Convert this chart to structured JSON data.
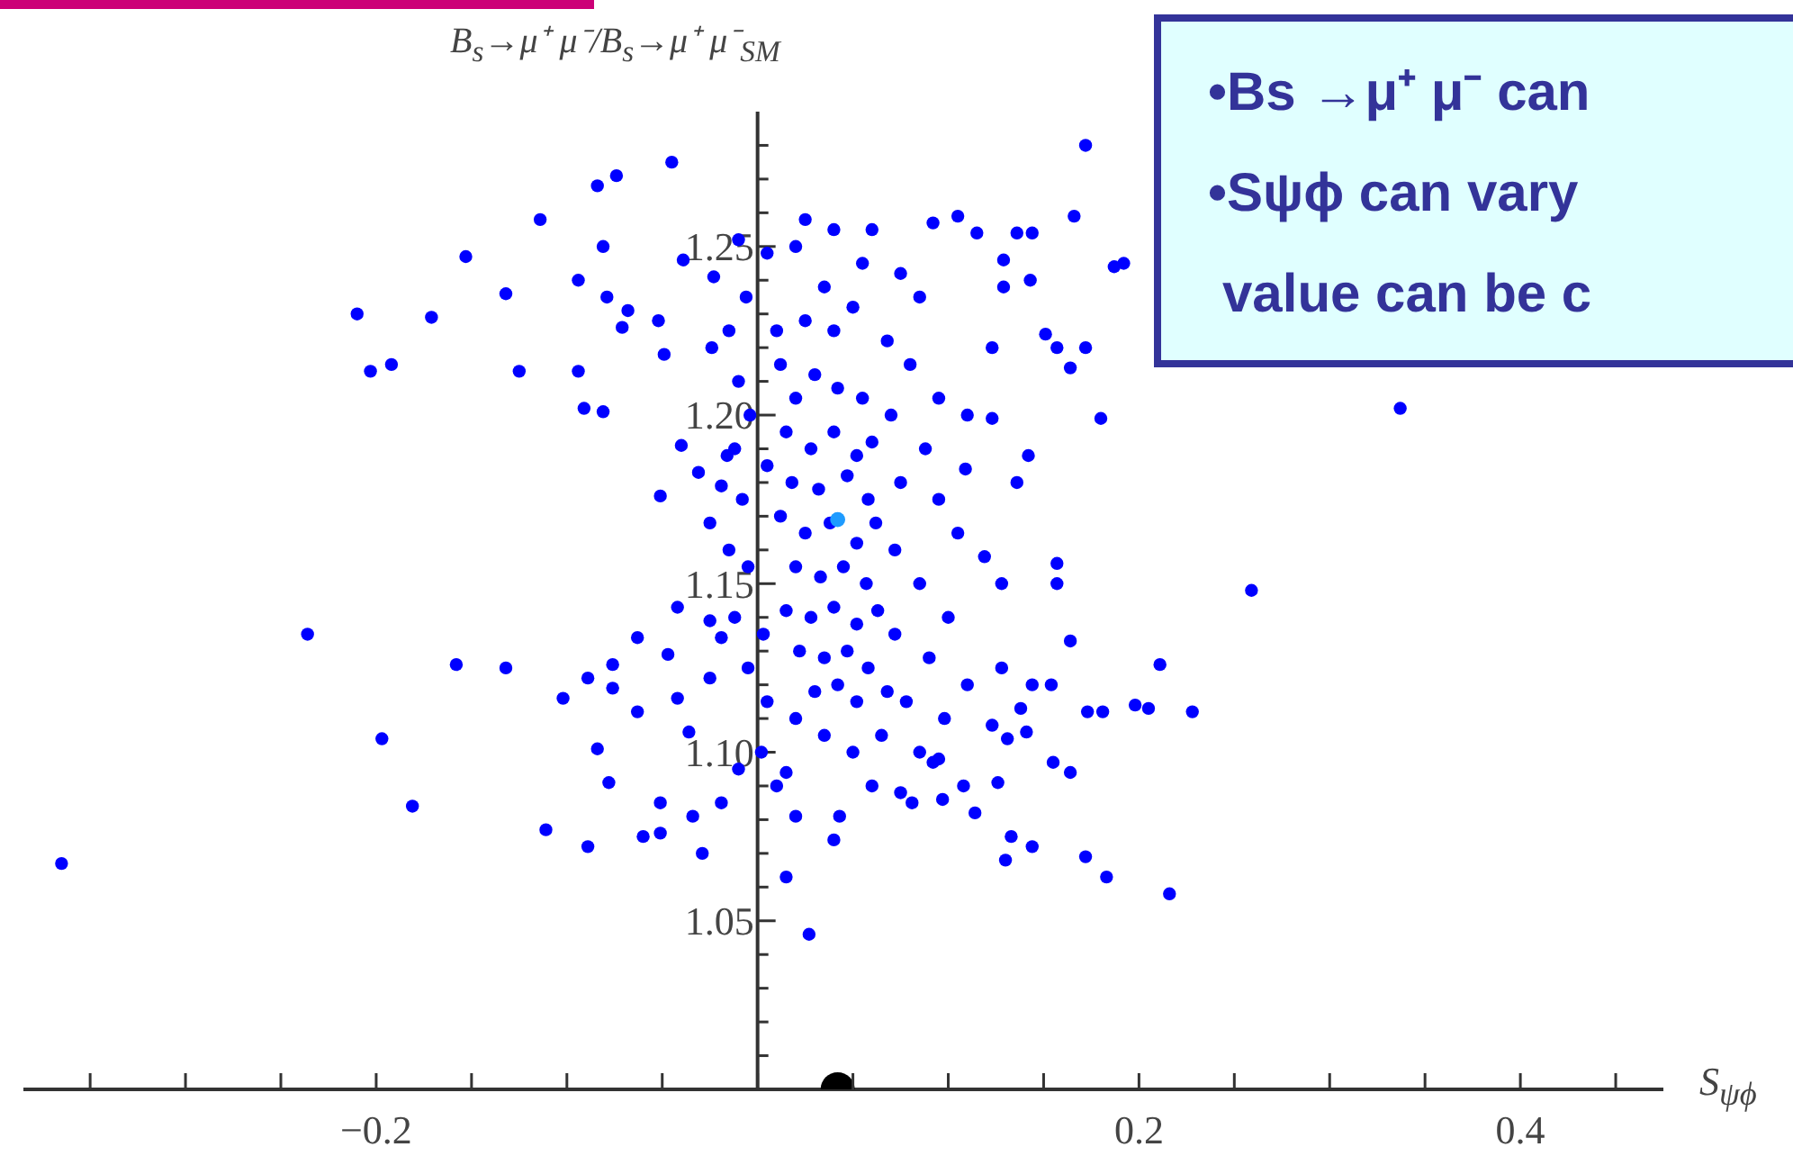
{
  "chart_data": {
    "type": "scatter",
    "ylabel": "B$_{s}$→μ⁺ μ⁻/B$_{s}$→μ⁺ μ⁻$_{SM}$",
    "xlabel": "S$_{ψϕ}$",
    "annotations": [
      "•Bs →μ⁺ μ⁻ can",
      "•Sψϕ can vary",
      "value can be c"
    ],
    "xlim": [
      -0.385,
      0.475
    ],
    "ylim": [
      1.0,
      1.29
    ],
    "xticks": [
      {
        "value": -0.35,
        "label": null
      },
      {
        "value": -0.3,
        "label": null
      },
      {
        "value": -0.25,
        "label": null
      },
      {
        "value": -0.2,
        "label": "−0.2"
      },
      {
        "value": -0.15,
        "label": null
      },
      {
        "value": -0.1,
        "label": null
      },
      {
        "value": -0.05,
        "label": null
      },
      {
        "value": 0,
        "label": null
      },
      {
        "value": 0.05,
        "label": null
      },
      {
        "value": 0.1,
        "label": null
      },
      {
        "value": 0.15,
        "label": null
      },
      {
        "value": 0.2,
        "label": "0.2"
      },
      {
        "value": 0.25,
        "label": null
      },
      {
        "value": 0.3,
        "label": null
      },
      {
        "value": 0.35,
        "label": null
      },
      {
        "value": 0.4,
        "label": "0.4"
      },
      {
        "value": 0.45,
        "label": null
      }
    ],
    "yticks": [
      {
        "value": 1.01,
        "label": null
      },
      {
        "value": 1.02,
        "label": null
      },
      {
        "value": 1.03,
        "label": null
      },
      {
        "value": 1.04,
        "label": null
      },
      1.05,
      {
        "value": 1.06,
        "label": null
      },
      {
        "value": 1.07,
        "label": null
      },
      {
        "value": 1.08,
        "label": null
      },
      {
        "value": 1.09,
        "label": null
      },
      {
        "value": 1.1,
        "label": "1.10"
      },
      {
        "value": 1.11,
        "label": null
      },
      {
        "value": 1.12,
        "label": null
      },
      {
        "value": 1.13,
        "label": null
      },
      {
        "value": 1.14,
        "label": null
      },
      1.15,
      {
        "value": 1.16,
        "label": null
      },
      {
        "value": 1.17,
        "label": null
      },
      {
        "value": 1.18,
        "label": null
      },
      {
        "value": 1.19,
        "label": null
      },
      {
        "value": 1.2,
        "label": "1.20"
      },
      {
        "value": 1.21,
        "label": null
      },
      {
        "value": 1.22,
        "label": null
      },
      {
        "value": 1.23,
        "label": null
      },
      {
        "value": 1.24,
        "label": null
      },
      1.25,
      {
        "value": 1.26,
        "label": null
      },
      {
        "value": 1.27,
        "label": null
      },
      {
        "value": 1.28,
        "label": null
      }
    ],
    "marker": "circle",
    "series": [
      {
        "color": "#0000ff",
        "x": [
          -0.365,
          -0.236,
          -0.21,
          -0.203,
          -0.192,
          -0.197,
          -0.181,
          -0.171,
          -0.158,
          -0.153,
          -0.132,
          -0.132,
          -0.125,
          -0.114,
          -0.111,
          -0.102,
          -0.094,
          -0.094,
          -0.091,
          -0.089,
          -0.089,
          -0.084,
          -0.081,
          -0.081,
          -0.079,
          -0.074,
          -0.084,
          -0.078,
          -0.076,
          -0.076,
          -0.071,
          -0.068,
          -0.063,
          -0.063,
          -0.06,
          -0.051,
          -0.051,
          -0.045,
          -0.051,
          -0.052,
          -0.049,
          -0.047,
          -0.042,
          -0.04,
          -0.042,
          -0.034,
          -0.029,
          -0.031,
          -0.025,
          -0.024,
          -0.025,
          -0.019,
          -0.023,
          -0.039,
          -0.016,
          -0.019,
          -0.025,
          -0.036,
          -0.019,
          0.172,
          0.166,
          0.092,
          0.105,
          0.115,
          0.136,
          0.144,
          0.192,
          0.187,
          0.129,
          0.129,
          0.143,
          0.123,
          0.151,
          0.157,
          0.172,
          0.164,
          0.123,
          0.18,
          0.142,
          0.136,
          0.109,
          0.119,
          0.128,
          0.157,
          0.157,
          0.259,
          0.164,
          0.211,
          0.128,
          0.144,
          0.154,
          0.173,
          0.181,
          0.198,
          0.205,
          0.228,
          0.123,
          0.138,
          0.141,
          0.131,
          0.155,
          0.164,
          0.126,
          0.108,
          0.114,
          0.097,
          0.081,
          0.133,
          0.144,
          0.13,
          0.172,
          0.183,
          0.216,
          0.015,
          0.027,
          0.04,
          0.043,
          0.02,
          0.015,
          0.092,
          0.095,
          0.337,
          0.012,
          0.02,
          0.03,
          0.042,
          0.055,
          0.015,
          0.028,
          0.04,
          0.052,
          0.06,
          0.018,
          0.032,
          0.047,
          0.058,
          0.012,
          0.025,
          0.038,
          0.052,
          0.062,
          0.02,
          0.033,
          0.045,
          0.057,
          0.015,
          0.028,
          0.04,
          0.052,
          0.063,
          0.022,
          0.035,
          0.047,
          0.058,
          0.03,
          0.042,
          0.052,
          0.01,
          0.025,
          0.04,
          0.035,
          0.05,
          -0.01,
          0.005,
          0.02,
          0.04,
          0.055,
          0.075,
          0.085,
          0.068,
          0.08,
          0.095,
          0.07,
          0.088,
          0.075,
          0.095,
          0.072,
          0.085,
          0.1,
          0.072,
          0.09,
          0.078,
          0.098,
          0.065,
          0.085,
          0.05,
          0.035,
          0.02,
          0.005,
          -0.005,
          -0.012,
          -0.005,
          -0.015,
          -0.008,
          -0.012,
          -0.004,
          -0.01,
          -0.015,
          -0.006,
          0.002,
          -0.01,
          0.01,
          0.06,
          0.075,
          0.11,
          0.105,
          0.11,
          0.06,
          0.025,
          0.068,
          0.003,
          0.005
        ],
        "values": [
          1.067,
          1.135,
          1.23,
          1.213,
          1.215,
          1.104,
          1.084,
          1.229,
          1.126,
          1.247,
          1.236,
          1.125,
          1.213,
          1.258,
          1.077,
          1.116,
          1.24,
          1.213,
          1.202,
          1.122,
          1.072,
          1.268,
          1.25,
          1.201,
          1.235,
          1.271,
          1.101,
          1.091,
          1.126,
          1.119,
          1.226,
          1.231,
          1.134,
          1.112,
          1.075,
          1.085,
          1.076,
          1.275,
          1.176,
          1.228,
          1.218,
          1.129,
          1.116,
          1.191,
          1.143,
          1.081,
          1.07,
          1.183,
          1.168,
          1.22,
          1.122,
          1.085,
          1.241,
          1.246,
          1.188,
          1.179,
          1.139,
          1.106,
          1.134,
          1.28,
          1.259,
          1.257,
          1.259,
          1.254,
          1.254,
          1.254,
          1.245,
          1.244,
          1.246,
          1.238,
          1.24,
          1.22,
          1.224,
          1.22,
          1.22,
          1.214,
          1.199,
          1.199,
          1.188,
          1.18,
          1.184,
          1.158,
          1.15,
          1.156,
          1.15,
          1.148,
          1.133,
          1.126,
          1.125,
          1.12,
          1.12,
          1.112,
          1.112,
          1.114,
          1.113,
          1.112,
          1.108,
          1.113,
          1.106,
          1.104,
          1.097,
          1.094,
          1.091,
          1.09,
          1.082,
          1.086,
          1.085,
          1.075,
          1.072,
          1.068,
          1.069,
          1.063,
          1.058,
          1.063,
          1.046,
          1.074,
          1.081,
          1.081,
          1.094,
          1.097,
          1.098,
          1.202,
          1.215,
          1.205,
          1.212,
          1.208,
          1.205,
          1.195,
          1.19,
          1.195,
          1.188,
          1.192,
          1.18,
          1.178,
          1.182,
          1.175,
          1.17,
          1.165,
          1.168,
          1.162,
          1.168,
          1.155,
          1.152,
          1.155,
          1.15,
          1.142,
          1.14,
          1.143,
          1.138,
          1.142,
          1.13,
          1.128,
          1.13,
          1.125,
          1.118,
          1.12,
          1.115,
          1.225,
          1.228,
          1.225,
          1.238,
          1.232,
          1.252,
          1.248,
          1.25,
          1.255,
          1.245,
          1.242,
          1.235,
          1.222,
          1.215,
          1.205,
          1.2,
          1.19,
          1.18,
          1.175,
          1.16,
          1.15,
          1.14,
          1.135,
          1.128,
          1.115,
          1.11,
          1.105,
          1.1,
          1.1,
          1.105,
          1.11,
          1.115,
          1.125,
          1.14,
          1.155,
          1.16,
          1.175,
          1.19,
          1.2,
          1.21,
          1.225,
          1.235,
          1.1,
          1.095,
          1.09,
          1.09,
          1.088,
          1.12,
          1.165,
          1.2,
          1.255,
          1.258,
          1.118,
          1.135,
          1.185
        ]
      },
      {
        "color": "#1e9bff",
        "x": [
          0.042
        ],
        "values": [
          1.169
        ]
      },
      {
        "color": "#000000",
        "x": [
          0.042
        ],
        "values": [
          1.0
        ]
      }
    ]
  }
}
